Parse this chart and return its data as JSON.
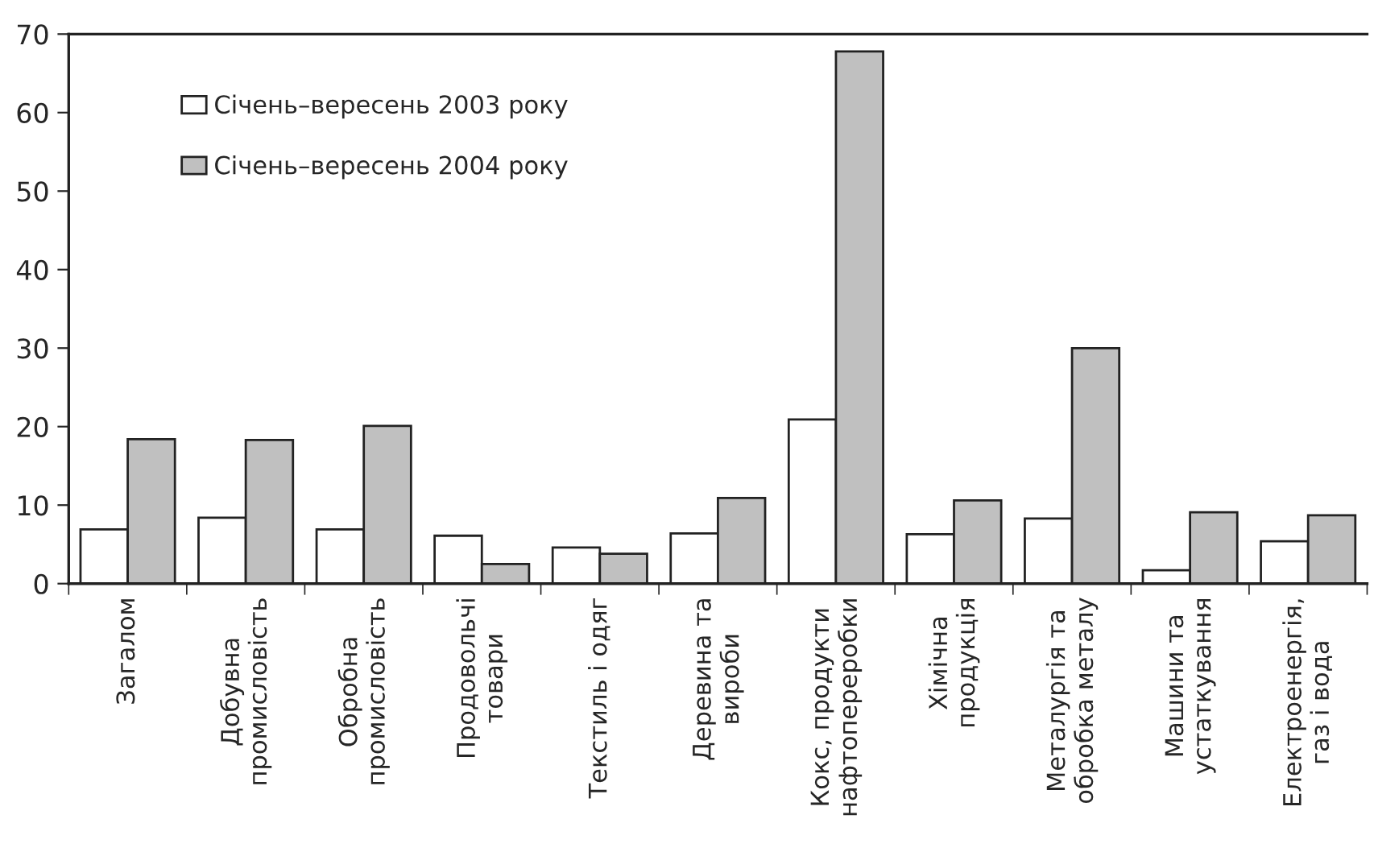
{
  "chart_data": {
    "type": "bar",
    "categories": [
      "Загалом",
      "Добувна\nпромисловість",
      "Обробна\nпромисловість",
      "Продовольчі\nтовари",
      "Текстиль і одяг",
      "Деревина та\nвироби",
      "Кокс, продукти\nнафтопереробки",
      "Хімічна\nпродукція",
      "Металургія та\nобробка металу",
      "Машини та\nустаткування",
      "Електроенергія,\nгаз і вода"
    ],
    "series": [
      {
        "name": "Січень–вересень 2003 року",
        "color": "#ffffff",
        "values": [
          6.9,
          8.4,
          6.9,
          6.1,
          4.6,
          6.4,
          20.9,
          6.3,
          8.3,
          1.7,
          5.4
        ]
      },
      {
        "name": "Січень–вересень 2004 року",
        "color": "#c0c0c0",
        "values": [
          18.4,
          18.3,
          20.1,
          2.5,
          3.8,
          10.9,
          67.8,
          10.6,
          30,
          9.1,
          8.7
        ]
      }
    ],
    "ylim": [
      0,
      70
    ],
    "yticks": [
      0,
      10,
      20,
      30,
      40,
      50,
      60,
      70
    ],
    "grid": false,
    "legend": "top left"
  }
}
